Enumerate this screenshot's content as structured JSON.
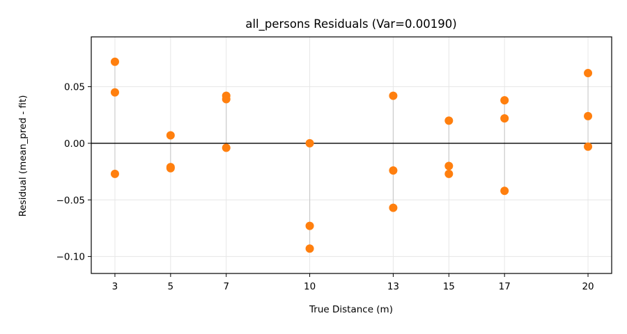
{
  "chart_data": {
    "type": "scatter",
    "title": "all_persons Residuals (Var=0.00190)",
    "xlabel": "True Distance (m)",
    "ylabel": "Residual (mean_pred - fit)",
    "xlim": [
      2.15,
      20.85
    ],
    "ylim": [
      -0.115,
      0.094
    ],
    "xticks": [
      3,
      5,
      7,
      10,
      13,
      15,
      17,
      20
    ],
    "yticks": [
      0.05,
      0.0,
      -0.05,
      -0.1
    ],
    "ytick_labels": [
      "0.05",
      "0.00",
      "−0.05",
      "−0.10"
    ],
    "grid": true,
    "zero_line": 0.0,
    "marker_color": "#ff7f0e",
    "stem_color": "#c8c8c8",
    "points": [
      {
        "x": 3,
        "y": 0.072
      },
      {
        "x": 3,
        "y": 0.045
      },
      {
        "x": 3,
        "y": -0.027
      },
      {
        "x": 5,
        "y": 0.007
      },
      {
        "x": 5,
        "y": -0.021
      },
      {
        "x": 5,
        "y": -0.022
      },
      {
        "x": 7,
        "y": 0.042
      },
      {
        "x": 7,
        "y": 0.039
      },
      {
        "x": 7,
        "y": -0.004
      },
      {
        "x": 10,
        "y": 0.0
      },
      {
        "x": 10,
        "y": -0.073
      },
      {
        "x": 10,
        "y": -0.093
      },
      {
        "x": 13,
        "y": 0.042
      },
      {
        "x": 13,
        "y": -0.024
      },
      {
        "x": 13,
        "y": -0.057
      },
      {
        "x": 15,
        "y": 0.02
      },
      {
        "x": 15,
        "y": -0.02
      },
      {
        "x": 15,
        "y": -0.027
      },
      {
        "x": 17,
        "y": 0.038
      },
      {
        "x": 17,
        "y": 0.022
      },
      {
        "x": 17,
        "y": -0.042
      },
      {
        "x": 20,
        "y": 0.062
      },
      {
        "x": 20,
        "y": 0.024
      },
      {
        "x": 20,
        "y": -0.003
      }
    ]
  }
}
